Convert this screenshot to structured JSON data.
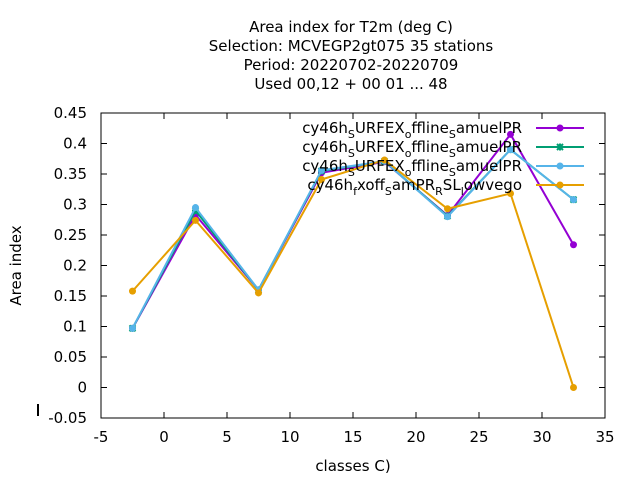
{
  "chart_data": {
    "type": "line",
    "title_lines": [
      "Area index  for T2m (deg C)",
      "Selection: MCVEGP2gt075      35 stations",
      "Period: 20220702-20220709",
      "Used  00,12  + 00 01 ... 48"
    ],
    "xlabel": "classes C)",
    "ylabel": "Area index",
    "xlim": [
      -5,
      35
    ],
    "ylim": [
      -0.05,
      0.45
    ],
    "xticks": [
      "-5",
      "0",
      "5",
      "10",
      "15",
      "20",
      "25",
      "30",
      "35"
    ],
    "yticks": [
      "-0.05",
      "0",
      "0.05",
      "0.1",
      "0.15",
      "0.2",
      "0.25",
      "0.3",
      "0.35",
      "0.4",
      "0.45"
    ],
    "x": [
      -2.5,
      2.5,
      7.5,
      12.5,
      17.5,
      22.5,
      27.5,
      32.5
    ],
    "legend_position": "top-right",
    "series": [
      {
        "name": "cy46h_SURFEX_offline_samuelPR",
        "color": "#9400d3",
        "values": [
          0.097,
          0.283,
          0.16,
          0.352,
          0.37,
          0.282,
          0.415,
          0.234
        ]
      },
      {
        "name": "cy46h_SURFEX_offline_samuelPR",
        "color": "#009e73",
        "values": [
          0.097,
          0.29,
          0.16,
          0.355,
          0.371,
          0.281,
          0.39,
          0.308
        ]
      },
      {
        "name": "cy46h_SURFEX_offline_samuelPR",
        "color": "#56b4e9",
        "values": [
          0.097,
          0.295,
          0.16,
          0.356,
          0.371,
          0.28,
          0.39,
          0.308
        ]
      },
      {
        "name": "cy46h_fxoff_samPR_RSL_lowvego",
        "color": "#e69f00",
        "values": [
          0.158,
          0.274,
          0.155,
          0.341,
          0.373,
          0.293,
          0.318,
          0.0
        ]
      }
    ],
    "legend_entries": [
      {
        "text": "cy46h",
        "sub1": "S",
        "mid1": "URFEX",
        "sub2": "o",
        "mid2": "ffline",
        "sub3": "S",
        "tail": "amuelPR"
      },
      {
        "text": "cy46h",
        "sub1": "S",
        "mid1": "URFEX",
        "sub2": "o",
        "mid2": "ffline",
        "sub3": "S",
        "tail": "amuelPR"
      },
      {
        "text": "cy46h",
        "sub1": "S",
        "mid1": "URFEX",
        "sub2": "o",
        "mid2": "ffline",
        "sub3": "S",
        "tail": "amuelPR"
      },
      {
        "text": "cy46h",
        "sub1": "f",
        "mid1": "xoff",
        "sub2": "S",
        "mid2": "amPR",
        "sub3": "R",
        "mid3": "SL",
        "sub4": "l",
        "tail": "owvego"
      }
    ]
  }
}
